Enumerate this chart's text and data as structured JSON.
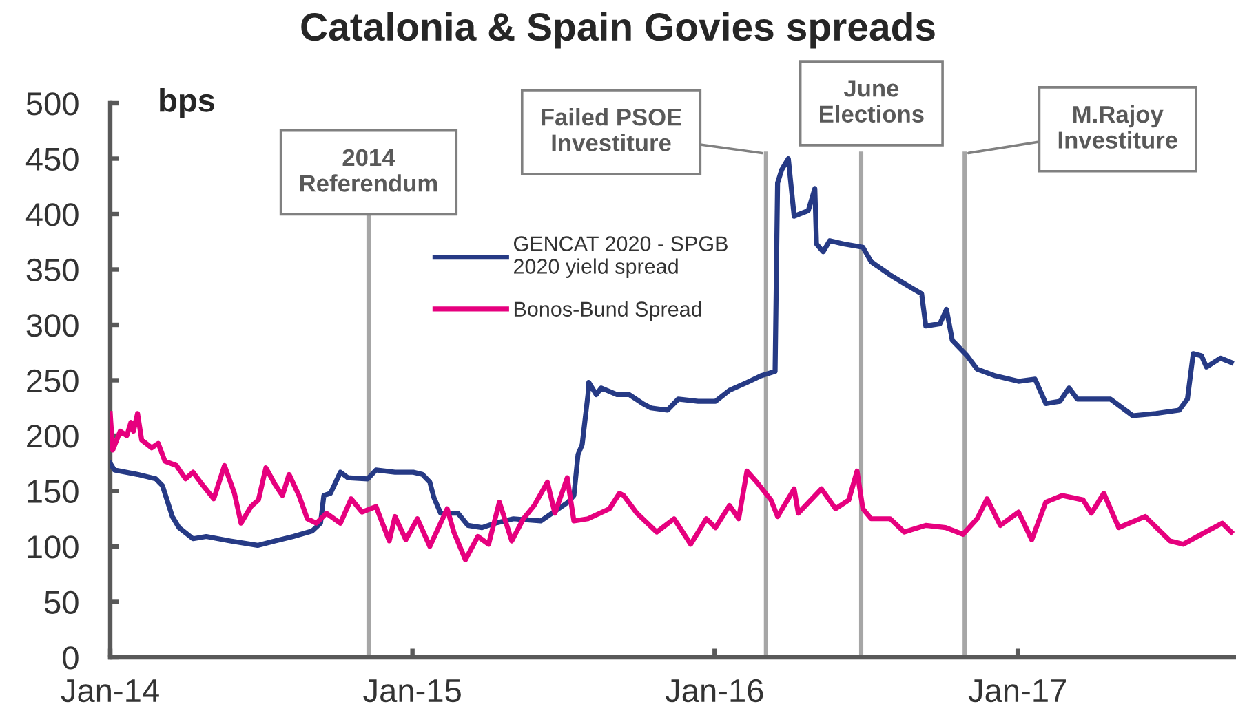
{
  "chart_data": {
    "type": "line",
    "title": "Catalonia & Spain Govies spreads",
    "ylabel": "bps",
    "xlim": [
      "2014-01-01",
      "2017-09-20"
    ],
    "xticks": [
      {
        "value": "2014-01-01",
        "label": "Jan-14"
      },
      {
        "value": "2015-01-01",
        "label": "Jan-15"
      },
      {
        "value": "2016-01-01",
        "label": "Jan-16"
      },
      {
        "value": "2017-01-01",
        "label": "Jan-17"
      }
    ],
    "ylim": [
      0,
      500
    ],
    "yticks": [
      0,
      50,
      100,
      150,
      200,
      250,
      300,
      350,
      400,
      450,
      500
    ],
    "legend": "top",
    "line_style": "solid",
    "series": [
      {
        "name": "GENCAT 2020 - SPGB 2020 yield spread",
        "color": "#263a85",
        "x": [
          "2014-01-01",
          "2014-01-06",
          "2014-02-03",
          "2014-02-25",
          "2014-03-05",
          "2014-03-17",
          "2014-03-25",
          "2014-04-11",
          "2014-04-27",
          "2014-05-26",
          "2014-06-28",
          "2014-07-19",
          "2014-08-10",
          "2014-09-02",
          "2014-09-12",
          "2014-09-16",
          "2014-09-24",
          "2014-10-06",
          "2014-10-15",
          "2014-11-08",
          "2014-11-18",
          "2014-12-11",
          "2015-01-02",
          "2015-01-13",
          "2015-01-22",
          "2015-01-27",
          "2015-02-04",
          "2015-02-25",
          "2015-03-09",
          "2015-03-26",
          "2015-04-11",
          "2015-05-03",
          "2015-06-05",
          "2015-07-08",
          "2015-07-15",
          "2015-07-20",
          "2015-07-25",
          "2015-08-01",
          "2015-08-02",
          "2015-08-11",
          "2015-08-17",
          "2015-09-05",
          "2015-09-20",
          "2015-10-06",
          "2015-10-16",
          "2015-11-05",
          "2015-11-18",
          "2015-12-12",
          "2016-01-02",
          "2016-01-19",
          "2016-02-09",
          "2016-02-26",
          "2016-03-14",
          "2016-03-17",
          "2016-03-22",
          "2016-03-30",
          "2016-04-06",
          "2016-04-23",
          "2016-05-01",
          "2016-05-03",
          "2016-05-11",
          "2016-05-19",
          "2016-06-05",
          "2016-06-28",
          "2016-07-08",
          "2016-07-31",
          "2016-08-22",
          "2016-09-07",
          "2016-09-12",
          "2016-09-29",
          "2016-10-07",
          "2016-10-14",
          "2016-11-01",
          "2016-11-13",
          "2016-12-05",
          "2017-01-02",
          "2017-01-22",
          "2017-02-04",
          "2017-02-21",
          "2017-03-04",
          "2017-03-14",
          "2017-04-23",
          "2017-05-20",
          "2017-06-17",
          "2017-07-15",
          "2017-07-25",
          "2017-08-01",
          "2017-08-11",
          "2017-08-17",
          "2017-09-03",
          "2017-09-16"
        ],
        "values": [
          175,
          169,
          165,
          161,
          155,
          127,
          117,
          107,
          109,
          105,
          101,
          105,
          109,
          114,
          121,
          146,
          148,
          167,
          162,
          161,
          169,
          167,
          167,
          165,
          158,
          144,
          130,
          130,
          119,
          117,
          121,
          125,
          123,
          140,
          146,
          183,
          192,
          237,
          248,
          237,
          243,
          237,
          237,
          229,
          225,
          223,
          233,
          231,
          231,
          241,
          248,
          254,
          258,
          428,
          440,
          450,
          398,
          403,
          423,
          373,
          366,
          376,
          373,
          370,
          357,
          345,
          335,
          328,
          299,
          301,
          314,
          286,
          272,
          260,
          254,
          249,
          251,
          229,
          231,
          243,
          233,
          233,
          218,
          220,
          223,
          233,
          274,
          272,
          262,
          270,
          266
        ]
      },
      {
        "name": "Bonos-Bund Spread",
        "color": "#e6007e",
        "x": [
          "2014-01-01",
          "2014-01-04",
          "2014-01-13",
          "2014-01-21",
          "2014-01-26",
          "2014-01-29",
          "2014-02-03",
          "2014-02-08",
          "2014-02-20",
          "2014-02-28",
          "2014-03-08",
          "2014-03-22",
          "2014-04-02",
          "2014-04-11",
          "2014-04-22",
          "2014-05-06",
          "2014-05-19",
          "2014-05-31",
          "2014-06-08",
          "2014-06-20",
          "2014-06-29",
          "2014-07-08",
          "2014-07-19",
          "2014-07-28",
          "2014-08-05",
          "2014-08-17",
          "2014-08-27",
          "2014-09-07",
          "2014-09-19",
          "2014-10-06",
          "2014-10-19",
          "2014-11-01",
          "2014-11-18",
          "2014-12-04",
          "2014-12-11",
          "2014-12-24",
          "2015-01-07",
          "2015-01-22",
          "2015-02-12",
          "2015-02-20",
          "2015-03-06",
          "2015-03-21",
          "2015-04-03",
          "2015-04-16",
          "2015-05-01",
          "2015-05-15",
          "2015-05-28",
          "2015-06-13",
          "2015-06-22",
          "2015-07-07",
          "2015-07-15",
          "2015-08-01",
          "2015-08-27",
          "2015-09-08",
          "2015-09-13",
          "2015-09-29",
          "2015-10-23",
          "2015-11-13",
          "2015-12-03",
          "2015-12-22",
          "2016-01-02",
          "2016-01-19",
          "2016-01-30",
          "2016-02-09",
          "2016-02-21",
          "2016-03-09",
          "2016-03-17",
          "2016-04-06",
          "2016-04-11",
          "2016-05-09",
          "2016-05-26",
          "2016-06-11",
          "2016-06-21",
          "2016-06-28",
          "2016-07-08",
          "2016-07-31",
          "2016-08-17",
          "2016-09-12",
          "2016-10-06",
          "2016-10-27",
          "2016-11-13",
          "2016-11-25",
          "2016-12-11",
          "2017-01-02",
          "2017-01-18",
          "2017-02-04",
          "2017-02-24",
          "2017-03-21",
          "2017-03-31",
          "2017-04-15",
          "2017-05-03",
          "2017-06-04",
          "2017-07-04",
          "2017-07-20",
          "2017-08-11",
          "2017-09-05",
          "2017-09-16"
        ],
        "values": [
          220,
          187,
          204,
          200,
          212,
          204,
          220,
          196,
          189,
          193,
          177,
          173,
          161,
          167,
          156,
          143,
          173,
          148,
          121,
          136,
          142,
          171,
          156,
          146,
          165,
          146,
          125,
          121,
          130,
          121,
          143,
          131,
          136,
          105,
          127,
          106,
          125,
          100,
          134,
          113,
          88,
          109,
          102,
          140,
          105,
          125,
          137,
          158,
          130,
          162,
          123,
          125,
          134,
          148,
          146,
          130,
          113,
          125,
          102,
          125,
          117,
          137,
          125,
          168,
          158,
          142,
          127,
          152,
          130,
          152,
          134,
          142,
          168,
          134,
          125,
          125,
          113,
          119,
          117,
          111,
          125,
          143,
          119,
          131,
          106,
          140,
          146,
          142,
          130,
          148,
          117,
          127,
          105,
          102,
          111,
          121,
          113
        ]
      }
    ],
    "ref_lines": [
      {
        "axis": "x",
        "value": "2014-11-09",
        "label": "2014 Referendum",
        "color": "#a6a6a6"
      },
      {
        "axis": "x",
        "value": "2016-03-03",
        "label": "Failed PSOE Investiture",
        "color": "#a6a6a6"
      },
      {
        "axis": "x",
        "value": "2016-06-26",
        "label": "June Elections",
        "color": "#a6a6a6"
      },
      {
        "axis": "x",
        "value": "2016-10-29",
        "label": "M.Rajoy Investiture",
        "color": "#a6a6a6"
      }
    ]
  }
}
